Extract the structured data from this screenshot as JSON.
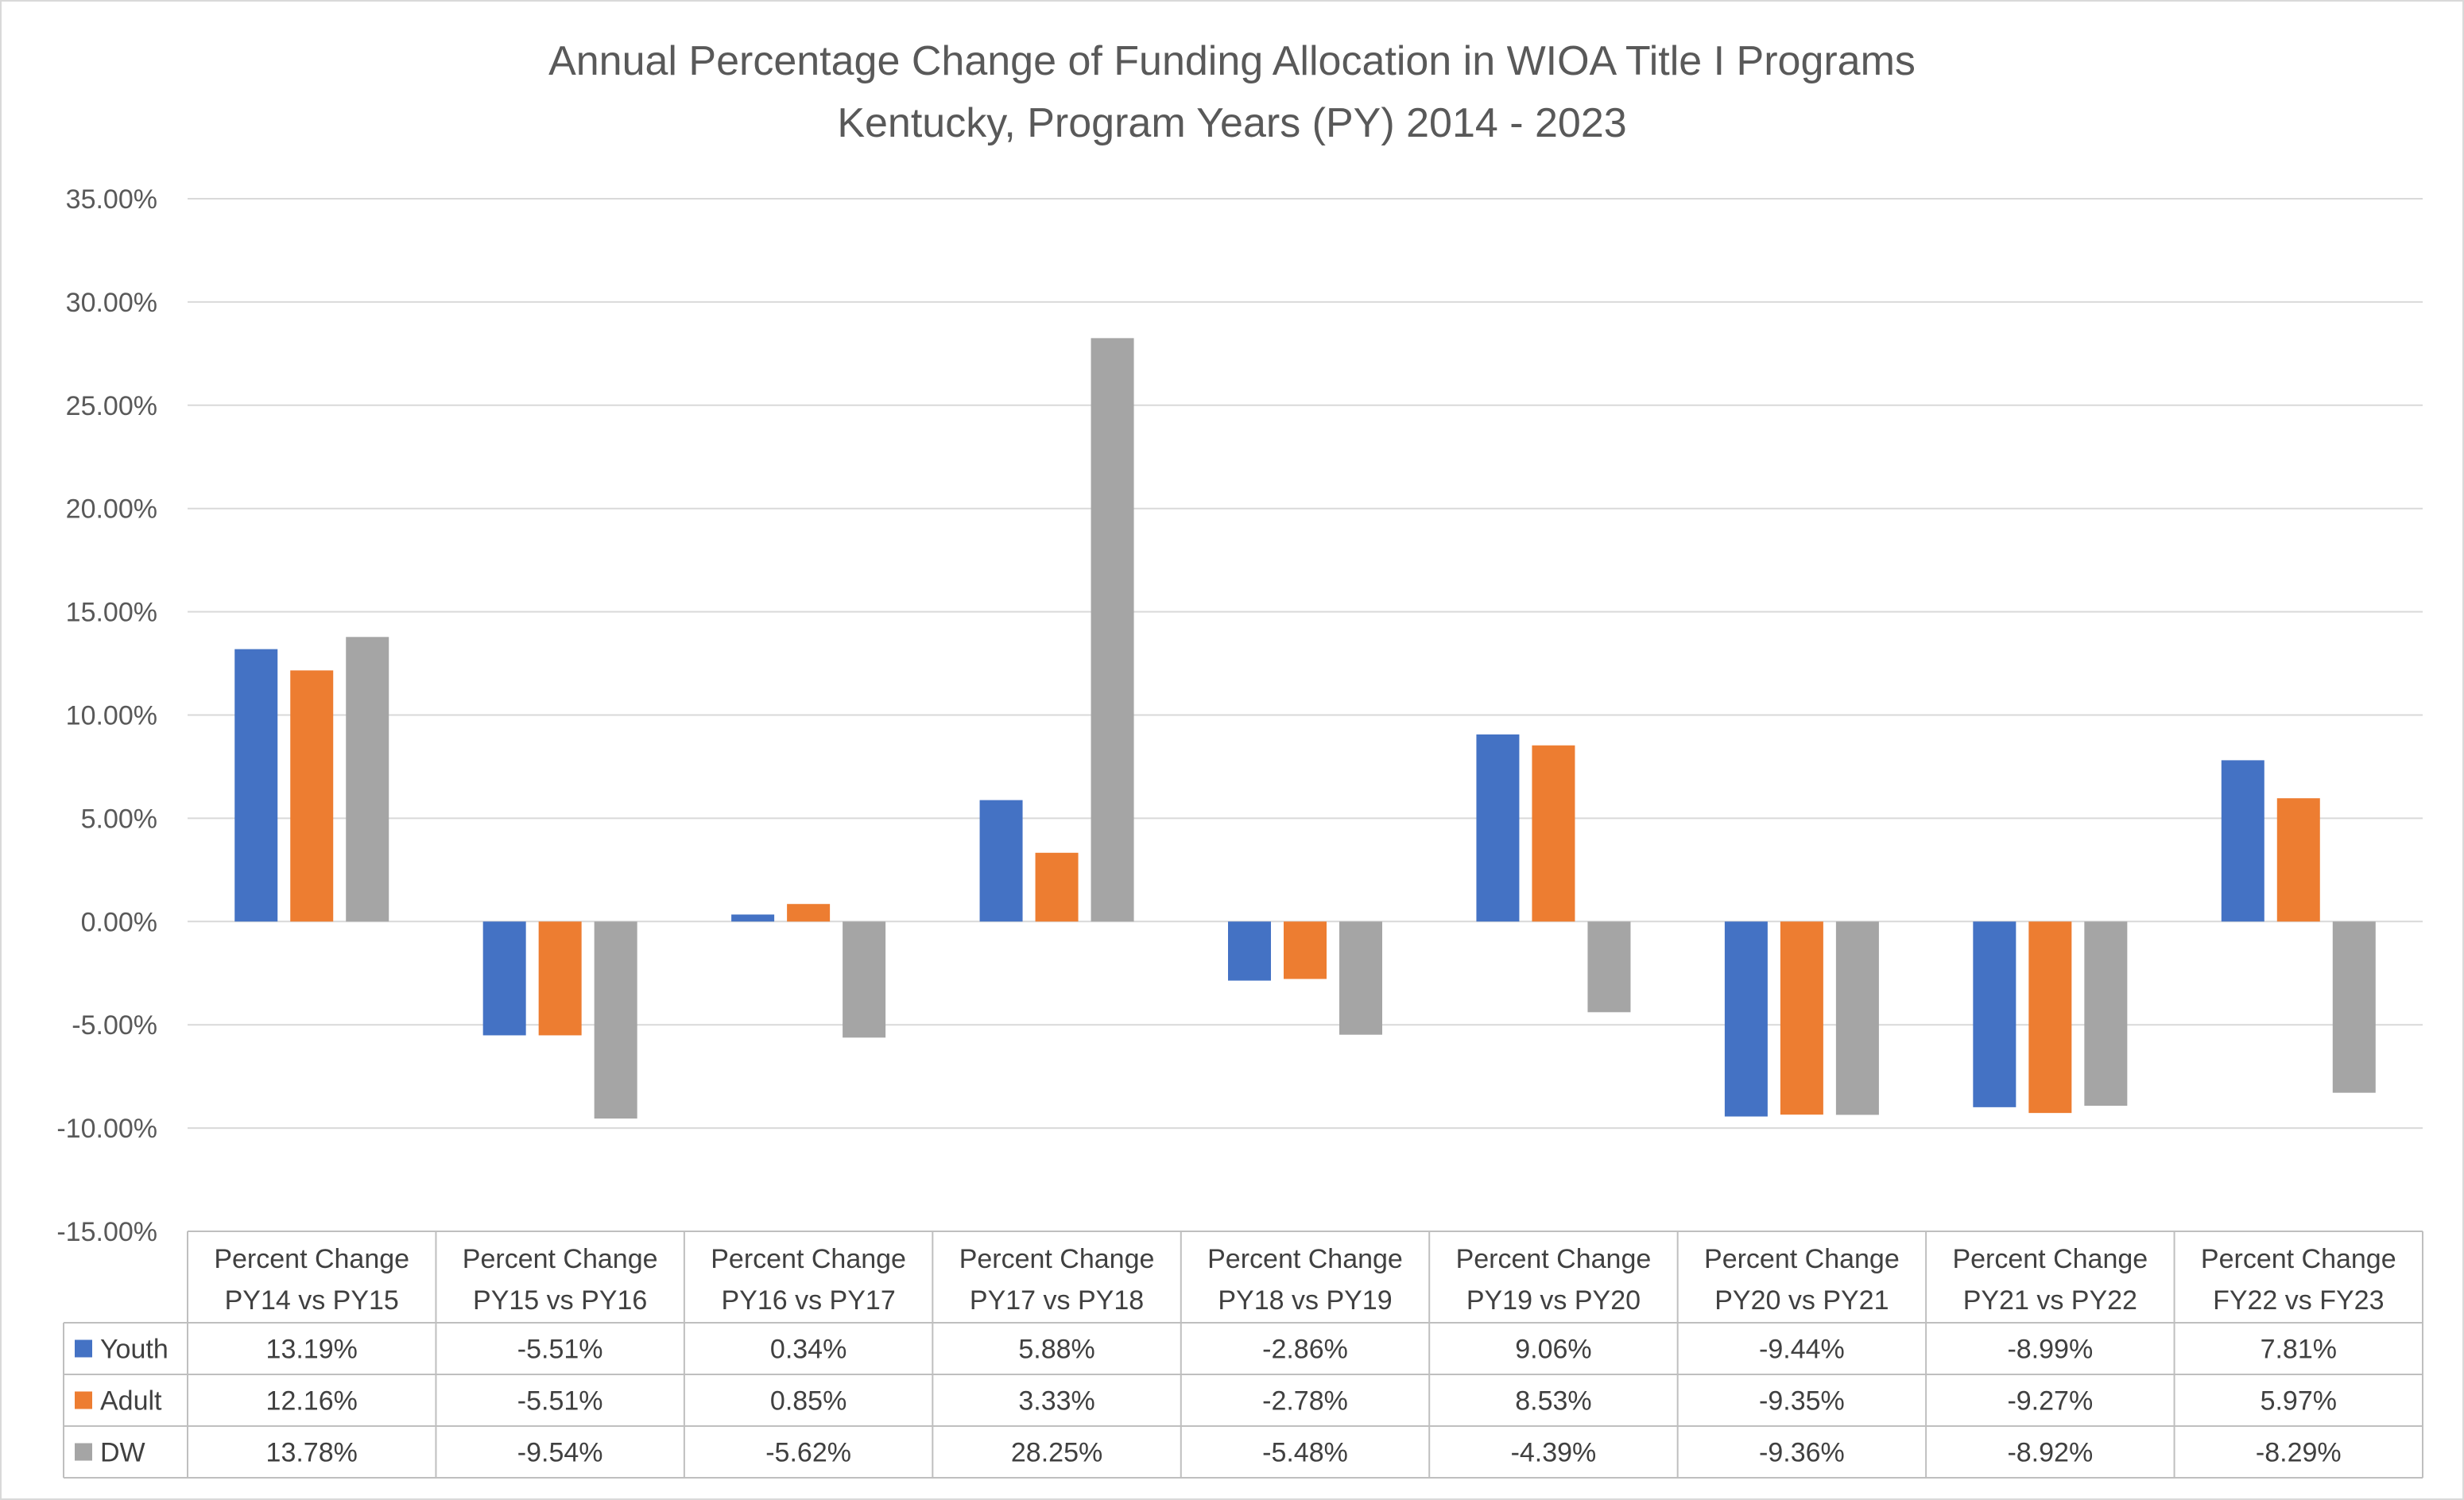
{
  "chart_data": {
    "type": "bar",
    "title": "Annual Percentage Change of Funding Allocation in WIOA Title I Programs",
    "subtitle": "Kentucky, Program Years (PY) 2014 - 2023",
    "xlabel": "",
    "ylabel": "",
    "ylim": [
      -15,
      35
    ],
    "y_ticks": [
      35,
      30,
      25,
      20,
      15,
      10,
      5,
      0,
      -5,
      -10,
      -15
    ],
    "y_tick_labels": [
      "35.00%",
      "30.00%",
      "25.00%",
      "20.00%",
      "15.00%",
      "10.00%",
      "5.00%",
      "0.00%",
      "-5.00%",
      "-10.00%",
      "-15.00%"
    ],
    "grid": true,
    "legend": "data-table",
    "categories": [
      [
        "Percent Change",
        "PY14 vs PY15"
      ],
      [
        "Percent Change",
        "PY15 vs PY16"
      ],
      [
        "Percent Change",
        "PY16 vs PY17"
      ],
      [
        "Percent Change",
        "PY17 vs PY18"
      ],
      [
        "Percent Change",
        "PY18 vs PY19"
      ],
      [
        "Percent Change",
        "PY19 vs PY20"
      ],
      [
        "Percent Change",
        "PY20 vs PY21"
      ],
      [
        "Percent Change",
        "PY21 vs PY22"
      ],
      [
        "Percent Change",
        "FY22 vs FY23"
      ]
    ],
    "series": [
      {
        "name": "Youth",
        "color": "#4472C4",
        "values": [
          13.19,
          -5.51,
          0.34,
          5.88,
          -2.86,
          9.06,
          -9.44,
          -8.99,
          7.81
        ],
        "labels": [
          "13.19%",
          "-5.51%",
          "0.34%",
          "5.88%",
          "-2.86%",
          "9.06%",
          "-9.44%",
          "-8.99%",
          "7.81%"
        ]
      },
      {
        "name": "Adult",
        "color": "#ED7D31",
        "values": [
          12.16,
          -5.51,
          0.85,
          3.33,
          -2.78,
          8.53,
          -9.35,
          -9.27,
          5.97
        ],
        "labels": [
          "12.16%",
          "-5.51%",
          "0.85%",
          "3.33%",
          "-2.78%",
          "8.53%",
          "-9.35%",
          "-9.27%",
          "5.97%"
        ]
      },
      {
        "name": "DW",
        "color": "#A5A5A5",
        "values": [
          13.78,
          -9.54,
          -5.62,
          28.25,
          -5.48,
          -4.39,
          -9.36,
          -8.92,
          -8.29
        ],
        "labels": [
          "13.78%",
          "-9.54%",
          "-5.62%",
          "28.25%",
          "-5.48%",
          "-4.39%",
          "-9.36%",
          "-8.92%",
          "-8.29%"
        ]
      }
    ]
  }
}
